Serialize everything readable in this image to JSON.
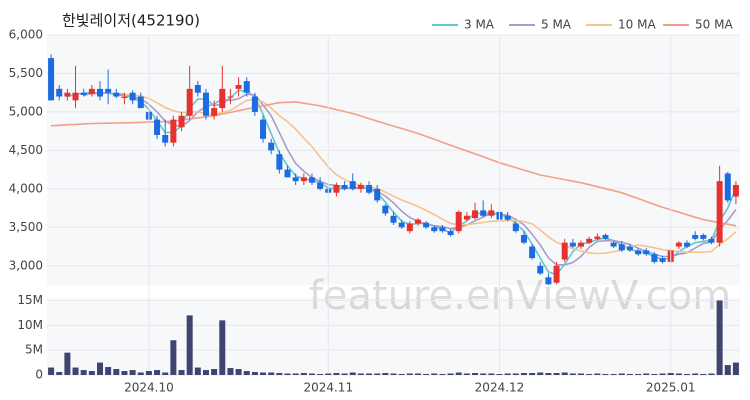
{
  "chart_data": [
    {
      "type": "candlestick",
      "title": "한빛레이저(452190)",
      "annotation": "feature.enViewV.com",
      "up_color": "#e8312f",
      "down_color": "#1d6be0",
      "grid": true,
      "categories": [
        null,
        null,
        null,
        null,
        null,
        null,
        null,
        null,
        null,
        null,
        null,
        null,
        "2024.10",
        null,
        null,
        null,
        null,
        null,
        null,
        null,
        null,
        null,
        null,
        null,
        null,
        null,
        null,
        null,
        null,
        null,
        null,
        null,
        null,
        null,
        "2024.11",
        null,
        null,
        null,
        null,
        null,
        null,
        null,
        null,
        null,
        null,
        null,
        null,
        null,
        null,
        null,
        null,
        null,
        null,
        null,
        null,
        "2024.12",
        null,
        null,
        null,
        null,
        null,
        null,
        null,
        null,
        null,
        null,
        null,
        null,
        null,
        null,
        null,
        null,
        null,
        null,
        null,
        null,
        "2025.01",
        null,
        null,
        null,
        null,
        null,
        null,
        null,
        null
      ],
      "open": [
        5700,
        5300,
        5200,
        5150,
        5250,
        5230,
        5300,
        5300,
        5250,
        5180,
        5250,
        5200,
        5000,
        4900,
        4700,
        4600,
        4800,
        4950,
        5350,
        5250,
        4950,
        5050,
        5200,
        5300,
        5400,
        5200,
        4900,
        4600,
        4450,
        4250,
        4150,
        4100,
        4150,
        4080,
        4000,
        3950,
        4050,
        4100,
        4000,
        4050,
        4000,
        3780,
        3650,
        3560,
        3450,
        3550,
        3560,
        3500,
        3500,
        3450,
        3450,
        3600,
        3620,
        3720,
        3650,
        3700,
        3650,
        3550,
        3400,
        3250,
        3000,
        2850,
        2780,
        3080,
        3300,
        3250,
        3300,
        3350,
        3400,
        3300,
        3280,
        3250,
        3200,
        3200,
        3150,
        3100,
        3050,
        3250,
        3300,
        3400,
        3400,
        3350,
        3300,
        4200,
        3900
      ],
      "high": [
        5750,
        5350,
        5300,
        5600,
        5300,
        5350,
        5400,
        5550,
        5300,
        5250,
        5280,
        5250,
        5050,
        4950,
        4900,
        4950,
        5000,
        5600,
        5400,
        5300,
        5150,
        5600,
        5300,
        5450,
        5450,
        5250,
        4950,
        4650,
        4500,
        4300,
        4200,
        4200,
        4200,
        4150,
        4050,
        4080,
        4100,
        4200,
        4080,
        4100,
        4050,
        3800,
        3700,
        3600,
        3580,
        3620,
        3580,
        3520,
        3530,
        3480,
        3720,
        3700,
        3820,
        3850,
        3800,
        3750,
        3700,
        3580,
        3450,
        3280,
        3050,
        2900,
        3050,
        3350,
        3350,
        3330,
        3380,
        3420,
        3420,
        3320,
        3320,
        3280,
        3220,
        3230,
        3180,
        3130,
        3220,
        3320,
        3330,
        3450,
        3420,
        3380,
        4300,
        4220,
        4100
      ],
      "low": [
        5150,
        5150,
        5150,
        5050,
        5200,
        5200,
        5150,
        5100,
        5180,
        5100,
        5100,
        5050,
        4850,
        4650,
        4550,
        4550,
        4750,
        4900,
        5200,
        4900,
        4900,
        5000,
        5100,
        5200,
        5200,
        4950,
        4600,
        4450,
        4200,
        4150,
        4050,
        4050,
        4050,
        3980,
        3930,
        3900,
        3980,
        3980,
        3950,
        3930,
        3820,
        3650,
        3530,
        3480,
        3420,
        3520,
        3480,
        3430,
        3430,
        3380,
        3420,
        3580,
        3600,
        3630,
        3620,
        3580,
        3580,
        3430,
        3280,
        3080,
        2880,
        2750,
        2760,
        3050,
        3230,
        3220,
        3280,
        3330,
        3330,
        3230,
        3180,
        3180,
        3130,
        3130,
        3030,
        3030,
        3030,
        3220,
        3230,
        3330,
        3330,
        3280,
        3250,
        3820,
        3800
      ],
      "close": [
        5150,
        5200,
        5250,
        5250,
        5220,
        5300,
        5200,
        5250,
        5200,
        5200,
        5150,
        5050,
        4900,
        4700,
        4600,
        4900,
        4950,
        5300,
        5250,
        4950,
        5050,
        5300,
        5200,
        5350,
        5250,
        5000,
        4650,
        4500,
        4250,
        4150,
        4100,
        4150,
        4080,
        4000,
        3950,
        4050,
        4000,
        4000,
        4050,
        3950,
        3850,
        3680,
        3560,
        3500,
        3550,
        3600,
        3500,
        3450,
        3450,
        3400,
        3700,
        3650,
        3720,
        3650,
        3720,
        3600,
        3600,
        3450,
        3300,
        3100,
        2900,
        2760,
        3000,
        3300,
        3250,
        3300,
        3350,
        3380,
        3350,
        3250,
        3200,
        3200,
        3150,
        3150,
        3050,
        3050,
        3200,
        3300,
        3250,
        3350,
        3350,
        3300,
        4100,
        3850,
        4050
      ],
      "series": [
        {
          "name": "3 MA",
          "color": "#5ec8cf",
          "values": [
            null,
            null,
            5200,
            5233,
            5240,
            5257,
            5240,
            5250,
            5217,
            5217,
            5183,
            5133,
            5033,
            4883,
            4733,
            4733,
            4817,
            5050,
            5167,
            5167,
            5083,
            5100,
            5183,
            5283,
            5267,
            5200,
            4967,
            4717,
            4467,
            4300,
            4167,
            4133,
            4110,
            4077,
            4010,
            4000,
            4000,
            4017,
            4017,
            4000,
            3950,
            3827,
            3697,
            3580,
            3537,
            3550,
            3550,
            3517,
            3467,
            3433,
            3517,
            3583,
            3690,
            3673,
            3697,
            3657,
            3640,
            3550,
            3450,
            3283,
            3100,
            2920,
            2887,
            3020,
            3183,
            3283,
            3300,
            3343,
            3360,
            3327,
            3267,
            3217,
            3183,
            3167,
            3117,
            3083,
            3100,
            3183,
            3250,
            3300,
            3317,
            3333,
            3583,
            3750,
            4000
          ]
        },
        {
          "name": "5 MA",
          "color": "#a99bcb",
          "values": [
            null,
            null,
            null,
            null,
            5214,
            5244,
            5244,
            5244,
            5234,
            5230,
            5200,
            5170,
            5100,
            5000,
            4880,
            4830,
            4810,
            4890,
            5000,
            5070,
            5100,
            5170,
            5150,
            5170,
            5230,
            5220,
            5090,
            4950,
            4730,
            4510,
            4330,
            4230,
            4146,
            4096,
            4056,
            4046,
            4016,
            4000,
            4010,
            4010,
            3970,
            3906,
            3818,
            3708,
            3628,
            3578,
            3542,
            3520,
            3510,
            3480,
            3500,
            3530,
            3584,
            3634,
            3688,
            3668,
            3658,
            3604,
            3534,
            3410,
            3270,
            3102,
            3012,
            3012,
            3042,
            3122,
            3240,
            3316,
            3326,
            3326,
            3306,
            3276,
            3230,
            3190,
            3150,
            3120,
            3120,
            3150,
            3170,
            3230,
            3290,
            3310,
            3470,
            3590,
            3730
          ]
        },
        {
          "name": "10 MA",
          "color": "#f3c58e",
          "values": [
            null,
            null,
            null,
            null,
            null,
            null,
            null,
            null,
            null,
            5223,
            5223,
            5208,
            5173,
            5118,
            5056,
            5016,
            4991,
            4996,
            5001,
            4976,
            4966,
            4991,
            5021,
            5086,
            5151,
            5161,
            5131,
            5051,
            4951,
            4871,
            4776,
            4661,
            4549,
            4414,
            4284,
            4184,
            4119,
            4069,
            4049,
            4029,
            4004,
            3957,
            3905,
            3855,
            3815,
            3770,
            3720,
            3665,
            3605,
            3550,
            3535,
            3532,
            3548,
            3563,
            3580,
            3580,
            3590,
            3590,
            3575,
            3545,
            3465,
            3376,
            3304,
            3269,
            3222,
            3192,
            3167,
            3160,
            3165,
            3180,
            3210,
            3254,
            3269,
            3254,
            3234,
            3209,
            3194,
            3186,
            3176,
            3176,
            3176,
            3186,
            3281,
            3351,
            3441
          ]
        },
        {
          "name": "50 MA",
          "color": "#f2a08a",
          "values": [
            4820,
            4826,
            4832,
            4838,
            4844,
            4850,
            4852,
            4854,
            4856,
            4858,
            4860,
            4864,
            4868,
            4872,
            4876,
            4880,
            4894,
            4908,
            4922,
            4936,
            4950,
            4972,
            4994,
            5016,
            5038,
            5060,
            5080,
            5100,
            5120,
            5125,
            5130,
            5113,
            5097,
            5080,
            5055,
            5030,
            5005,
            4980,
            4947,
            4913,
            4880,
            4848,
            4816,
            4784,
            4752,
            4720,
            4682,
            4644,
            4606,
            4568,
            4530,
            4492,
            4454,
            4416,
            4378,
            4340,
            4308,
            4276,
            4244,
            4212,
            4180,
            4160,
            4140,
            4120,
            4100,
            4080,
            4054,
            4028,
            4002,
            3976,
            3950,
            3912,
            3874,
            3836,
            3798,
            3760,
            3728,
            3696,
            3664,
            3632,
            3600,
            3580,
            3560,
            3540,
            3520
          ]
        }
      ],
      "ylim": [
        2750,
        6000
      ],
      "yticks": [
        {
          "value": 3000,
          "label": "3,000"
        },
        {
          "value": 3500,
          "label": "3,500"
        },
        {
          "value": 4000,
          "label": "4,000"
        },
        {
          "value": 4500,
          "label": "4,500"
        },
        {
          "value": 5000,
          "label": "5,000"
        },
        {
          "value": 5500,
          "label": "5,500"
        },
        {
          "value": 6000,
          "label": "6,000"
        }
      ],
      "legend": "top-right"
    },
    {
      "type": "bar",
      "color": "#3f4470",
      "grid": true,
      "values": [
        1500000,
        600000,
        4500000,
        1500000,
        1000000,
        800000,
        2500000,
        1600000,
        1200000,
        800000,
        1000000,
        500000,
        800000,
        1000000,
        500000,
        7000000,
        1000000,
        12000000,
        1500000,
        1000000,
        1200000,
        11000000,
        1400000,
        1200000,
        800000,
        600000,
        500000,
        500000,
        400000,
        300000,
        300000,
        400000,
        300000,
        200000,
        300000,
        400000,
        300000,
        500000,
        300000,
        300000,
        300000,
        400000,
        300000,
        200000,
        300000,
        300000,
        200000,
        300000,
        200000,
        300000,
        500000,
        300000,
        400000,
        300000,
        300000,
        200000,
        300000,
        300000,
        400000,
        400000,
        500000,
        400000,
        400000,
        500000,
        300000,
        300000,
        200000,
        300000,
        200000,
        200000,
        300000,
        200000,
        200000,
        300000,
        200000,
        300000,
        400000,
        300000,
        200000,
        300000,
        200000,
        300000,
        15000000,
        2000000,
        2500000
      ],
      "ylim": [
        0,
        15500000
      ],
      "yticks": [
        0,
        {
          "value": 5000000,
          "label": "5M"
        },
        {
          "value": 10000000,
          "label": "10M"
        },
        {
          "value": 15000000,
          "label": "15M"
        }
      ]
    }
  ]
}
